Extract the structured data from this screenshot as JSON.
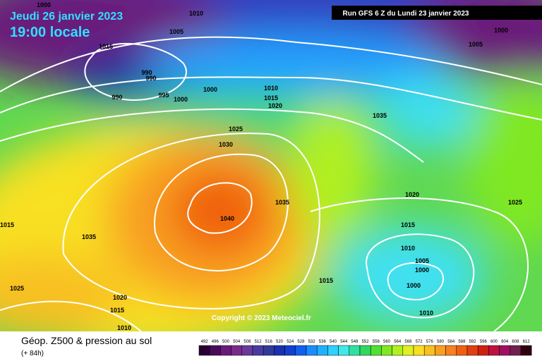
{
  "header": {
    "date": "Jeudi 26 janvier 2023",
    "time": "19:00 locale",
    "run": "Run GFS 6 Z du Lundi 23 janvier 2023"
  },
  "copyright": "Copyright © 2023 Meteociel.fr",
  "footer": {
    "title": "Géop. Z500 & pression au sol",
    "lead": "(+ 84h)"
  },
  "isobar_labels": [
    1000,
    1010,
    1005,
    1015,
    990,
    990,
    990,
    995,
    1000,
    1000,
    1010,
    1015,
    1020,
    1035,
    1025,
    1030,
    1040,
    1035,
    1035,
    1020,
    1025,
    1015,
    1010,
    1005,
    1000,
    1000,
    1015,
    1010,
    1020,
    1015,
    1010,
    1025,
    1015,
    1000,
    1005
  ],
  "scale": {
    "labels": [
      492,
      496,
      500,
      504,
      508,
      512,
      516,
      520,
      524,
      528,
      532,
      536,
      540,
      544,
      548,
      552,
      556,
      560,
      564,
      568,
      572,
      576,
      580,
      584,
      588,
      592,
      596,
      600,
      604,
      608,
      612
    ],
    "colors": [
      "#2a0033",
      "#4a0a5a",
      "#6a1a7a",
      "#7a2a8a",
      "#6a3a9a",
      "#4a3aa0",
      "#303a9a",
      "#1a30b0",
      "#1040d0",
      "#1060f0",
      "#1a8cff",
      "#20b0ff",
      "#30d0ff",
      "#40e8e8",
      "#30e0a0",
      "#30d860",
      "#50e030",
      "#80e820",
      "#b0f020",
      "#e0f020",
      "#f8e020",
      "#f8c020",
      "#f8a020",
      "#f88020",
      "#f06010",
      "#e04010",
      "#d02010",
      "#c01040",
      "#a01060",
      "#702050",
      "#300010"
    ]
  }
}
